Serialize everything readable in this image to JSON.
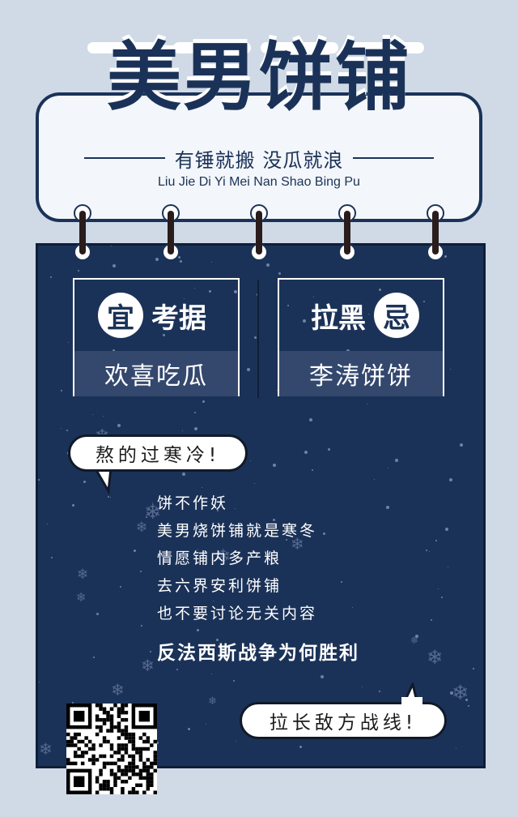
{
  "header": {
    "title": "美男饼铺",
    "subtitle": "有锤就搬  没瓜就浪",
    "pinyin": "Liu Jie Di Yi Mei Nan Shao Bing Pu"
  },
  "info_left": {
    "badge": "宜",
    "label": "考据",
    "value": "欢喜吃瓜"
  },
  "info_right": {
    "label": "拉黑",
    "badge": "忌",
    "value": "李涛饼饼"
  },
  "bubble_top": "熬的过寒冷!",
  "poem_lines": [
    "饼不作妖",
    "美男烧饼铺就是寒冬",
    "情愿铺内多产粮",
    "去六界安利饼铺",
    "也不要讨论无关内容"
  ],
  "slogan": "反法西斯战争为何胜利",
  "bubble_bottom": "拉长敌方战线!",
  "colors": {
    "background": "#cfdae6",
    "navy": "#1b3258",
    "panel": "#34486e",
    "white": "#ffffff"
  }
}
